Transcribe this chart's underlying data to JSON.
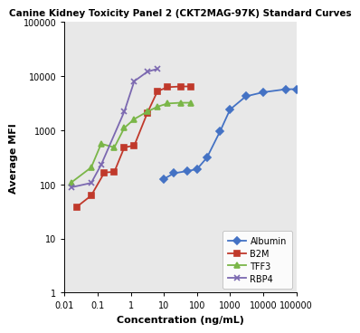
{
  "title": "Canine Kidney Toxicity Panel 2 (CKT2MAG-97K) Standard Curves",
  "xlabel": "Concentration (ng/mL)",
  "ylabel": "Average MFI",
  "xlim_log": [
    -2,
    5
  ],
  "ylim_log": [
    0,
    5
  ],
  "plot_bg": "#e8e8e8",
  "fig_bg": "#ffffff",
  "series": {
    "Albumin": {
      "color": "#4472C4",
      "marker": "D",
      "markersize": 4,
      "linewidth": 1.3,
      "x": [
        10,
        20,
        50,
        100,
        200,
        500,
        1000,
        3000,
        10000,
        50000,
        100000
      ],
      "y": [
        125,
        160,
        175,
        190,
        310,
        950,
        2400,
        4200,
        5000,
        5700,
        5700
      ]
    },
    "B2M": {
      "color": "#C0392B",
      "marker": "s",
      "markersize": 4,
      "linewidth": 1.3,
      "x": [
        0.023,
        0.064,
        0.16,
        0.32,
        0.64,
        1.28,
        3.2,
        6.4,
        12.8,
        32,
        64
      ],
      "y": [
        38,
        62,
        165,
        170,
        480,
        520,
        2100,
        5200,
        6200,
        6400,
        6400
      ]
    },
    "TFF3": {
      "color": "#7AB648",
      "marker": "^",
      "markersize": 4,
      "linewidth": 1.3,
      "x": [
        0.016,
        0.064,
        0.128,
        0.32,
        0.64,
        1.28,
        3.2,
        6.4,
        12.8,
        32,
        64
      ],
      "y": [
        108,
        205,
        560,
        480,
        1100,
        1600,
        2200,
        2700,
        3100,
        3200,
        3200
      ]
    },
    "RBP4": {
      "color": "#7B68B0",
      "marker": "x",
      "markersize": 5,
      "linewidth": 1.3,
      "x": [
        0.016,
        0.064,
        0.128,
        0.64,
        1.28,
        3.2,
        6.4
      ],
      "y": [
        88,
        106,
        230,
        2200,
        8000,
        12000,
        13500
      ]
    }
  },
  "xticks": [
    0.01,
    0.1,
    1,
    10,
    100,
    1000,
    10000,
    100000
  ],
  "xticklabels": [
    "0.01",
    "0.1",
    "1",
    "10",
    "100",
    "1000",
    "10000",
    "100000"
  ],
  "yticks": [
    1,
    10,
    100,
    1000,
    10000,
    100000
  ],
  "yticklabels": [
    "1",
    "10",
    "100",
    "1000",
    "10000",
    "100000"
  ],
  "legend_loc": "lower right",
  "title_fontsize": 7.5,
  "axis_label_fontsize": 8,
  "tick_fontsize": 7,
  "legend_fontsize": 7
}
